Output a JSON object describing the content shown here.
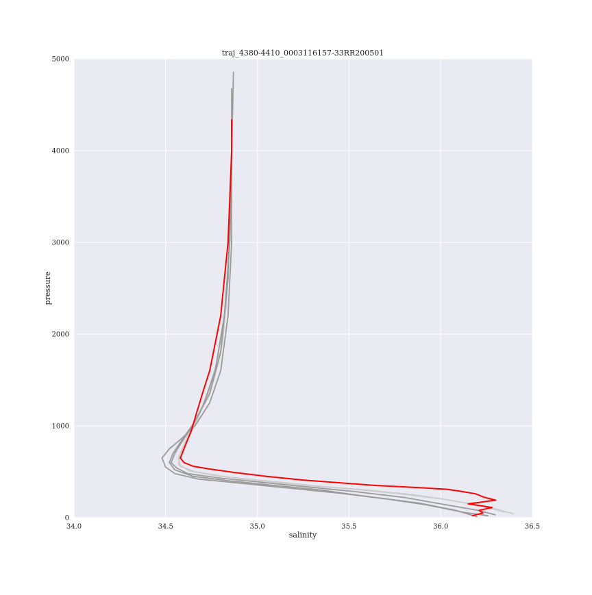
{
  "chart_data": {
    "type": "line",
    "title": "traj_4380-4410_0003116157-33RR200501",
    "xlabel": "salinity",
    "ylabel": "pressure",
    "xlim": [
      34.0,
      36.5
    ],
    "ylim": [
      0,
      5000
    ],
    "xticks": [
      "34.0",
      "34.5",
      "35.0",
      "35.5",
      "36.0",
      "36.5"
    ],
    "yticks": [
      "0",
      "1000",
      "2000",
      "3000",
      "4000",
      "5000"
    ],
    "grid": true,
    "colors": {
      "background": "#eaeaf2",
      "grid": "#ffffff",
      "highlight": "#ff0000",
      "dark_gray": "#9a9a9a",
      "light_gray": "#cccccc"
    },
    "series": [
      {
        "color": "#ff0000",
        "x": [
          36.17,
          36.23,
          36.21,
          36.28,
          36.15,
          36.3,
          36.24,
          36.19,
          36.1,
          36.03,
          35.85,
          35.65,
          35.45,
          35.25,
          35.05,
          34.88,
          34.74,
          34.65,
          34.6,
          34.58,
          34.59,
          34.61,
          34.64,
          34.67,
          34.7,
          34.74,
          34.77,
          34.8,
          34.82,
          34.84,
          34.85,
          34.86,
          34.86
        ],
        "y": [
          20,
          50,
          80,
          110,
          150,
          190,
          220,
          260,
          290,
          310,
          330,
          350,
          380,
          410,
          450,
          490,
          530,
          560,
          600,
          650,
          700,
          800,
          950,
          1150,
          1350,
          1600,
          1900,
          2200,
          2600,
          3000,
          3500,
          4000,
          4340
        ]
      },
      {
        "color": "#9a9a9a",
        "x": [
          36.3,
          36.2,
          36.0,
          35.8,
          35.55,
          35.3,
          35.05,
          34.8,
          34.62,
          34.56,
          34.53,
          34.55,
          34.58,
          34.63,
          34.7,
          34.77,
          34.82,
          34.85,
          34.86,
          34.87
        ],
        "y": [
          30,
          80,
          150,
          220,
          280,
          330,
          380,
          430,
          480,
          540,
          600,
          700,
          800,
          950,
          1200,
          1600,
          2200,
          3000,
          4000,
          4860
        ]
      },
      {
        "color": "#9a9a9a",
        "x": [
          36.26,
          36.12,
          35.92,
          35.68,
          35.43,
          35.18,
          34.93,
          34.68,
          34.55,
          34.5,
          34.48,
          34.52,
          34.58,
          34.66,
          34.74,
          34.8,
          34.84,
          34.86,
          34.86
        ],
        "y": [
          20,
          60,
          140,
          210,
          270,
          320,
          370,
          420,
          480,
          550,
          650,
          750,
          850,
          1000,
          1250,
          1600,
          2200,
          3000,
          4680
        ]
      },
      {
        "color": "#9a9a9a",
        "x": [
          36.2,
          36.08,
          35.88,
          35.6,
          35.35,
          35.1,
          34.85,
          34.65,
          34.55,
          34.52,
          34.54,
          34.59,
          34.66,
          34.74,
          34.8,
          34.84,
          34.86
        ],
        "y": [
          10,
          80,
          160,
          230,
          300,
          350,
          400,
          450,
          520,
          600,
          700,
          850,
          1050,
          1350,
          1800,
          2600,
          4000
        ]
      },
      {
        "color": "#cccccc",
        "x": [
          36.4,
          36.25,
          36.05,
          35.85,
          35.6,
          35.35,
          35.1,
          34.85,
          34.66,
          34.58,
          34.57,
          34.6,
          34.65,
          34.72,
          34.78,
          34.83,
          34.85,
          34.86
        ],
        "y": [
          40,
          120,
          190,
          250,
          300,
          340,
          390,
          440,
          500,
          560,
          650,
          800,
          1000,
          1300,
          1700,
          2300,
          3200,
          4000
        ]
      },
      {
        "color": "#cccccc",
        "x": [
          36.35,
          36.22,
          36.02,
          35.78,
          35.52,
          35.28,
          35.02,
          34.8,
          34.63,
          34.57,
          34.58,
          34.62,
          34.68,
          34.75,
          34.81,
          34.84,
          34.86
        ],
        "y": [
          60,
          130,
          200,
          260,
          310,
          350,
          400,
          450,
          510,
          580,
          700,
          850,
          1100,
          1450,
          1900,
          2600,
          3800
        ]
      }
    ]
  }
}
